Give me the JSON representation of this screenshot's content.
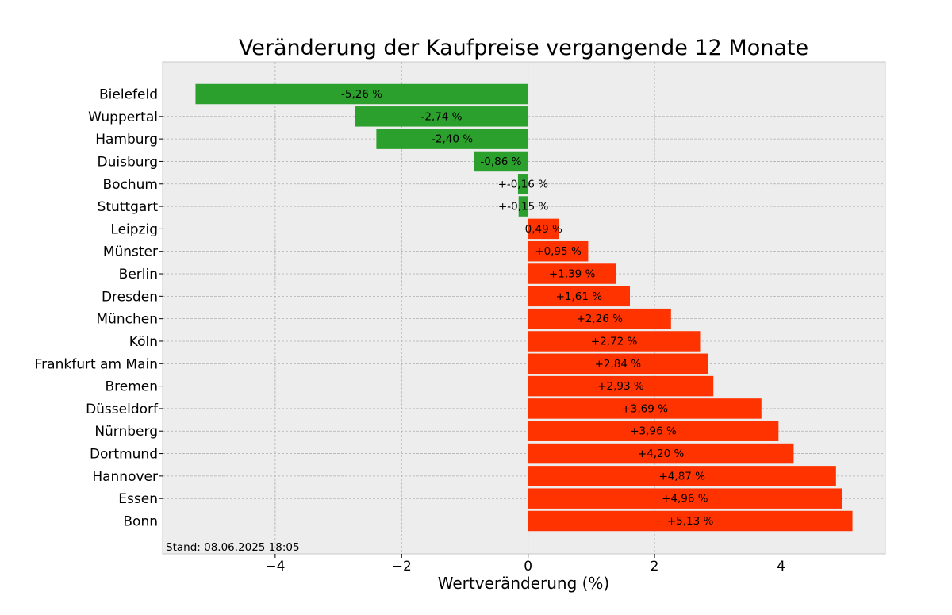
{
  "chart_data": {
    "type": "bar",
    "orientation": "horizontal",
    "title": "Veränderung der Kaufpreise vergangende 12 Monate",
    "xlabel": "Wertveränderung (%)",
    "ylabel": "",
    "xlim": [
      -5.78,
      5.65
    ],
    "xticks": [
      -4,
      -2,
      0,
      2,
      4
    ],
    "xtick_labels": [
      "−4",
      "−2",
      "0",
      "2",
      "4"
    ],
    "grid": true,
    "categories": [
      "Bielefeld",
      "Wuppertal",
      "Hamburg",
      "Duisburg",
      "Bochum",
      "Stuttgart",
      "Leipzig",
      "Münster",
      "Berlin",
      "Dresden",
      "München",
      "Köln",
      "Frankfurt am Main",
      "Bremen",
      "Düsseldorf",
      "Nürnberg",
      "Dortmund",
      "Hannover",
      "Essen",
      "Bonn"
    ],
    "values": [
      -5.26,
      -2.74,
      -2.4,
      -0.86,
      -0.16,
      -0.15,
      0.49,
      0.95,
      1.39,
      1.61,
      2.26,
      2.72,
      2.84,
      2.93,
      3.69,
      3.96,
      4.2,
      4.87,
      4.96,
      5.13
    ],
    "labels": [
      "-5,26 %",
      "-2,74 %",
      "-2,40 %",
      "-0,86 %",
      "+-0,16 %",
      "+-0,15 %",
      "0,49 %",
      "+0,95 %",
      "+1,39 %",
      "+1,61 %",
      "+2,26 %",
      "+2,72 %",
      "+2,84 %",
      "+2,93 %",
      "+3,69 %",
      "+3,96 %",
      "+4,20 %",
      "+4,87 %",
      "+4,96 %",
      "+5,13 %"
    ],
    "colors": {
      "negative": "#2ca02c",
      "positive": "#ff3300",
      "background": "#ededed",
      "grid": "#b0b0b0"
    },
    "annotation": "Stand: 08.06.2025 18:05"
  }
}
